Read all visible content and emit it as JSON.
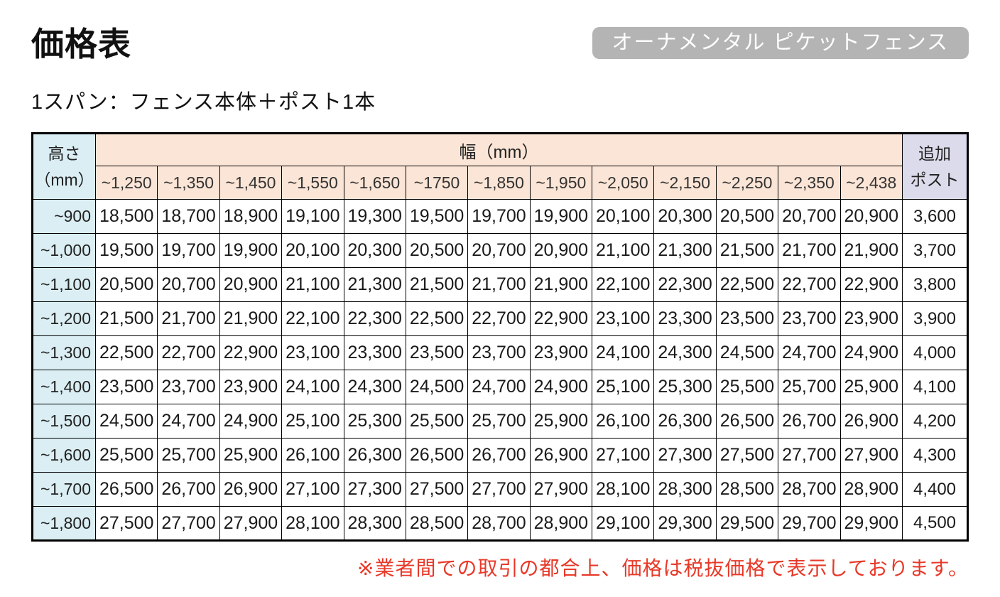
{
  "page": {
    "title": "価格表",
    "badge": "オーナメンタル ピケットフェンス",
    "subtitle": "1スパン：フェンス本体＋ポスト1本",
    "note": "※業者間での取引の都合上、価格は税抜価格で表示しております。"
  },
  "colors": {
    "header_peach": "#fbe5d6",
    "height_blue": "#daeef3",
    "post_lavender": "#dcdbeb",
    "badge_gray": "#b4b4b4",
    "note_red": "#e83828"
  },
  "table": {
    "corner_label_line1": "高さ",
    "corner_label_line2": "（mm）",
    "width_group_label": "幅（mm）",
    "extra_post_label_line1": "追加",
    "extra_post_label_line2": "ポスト",
    "width_headers": [
      "~1,250",
      "~1,350",
      "~1,450",
      "~1,550",
      "~1,650",
      "~1750",
      "~1,850",
      "~1,950",
      "~2,050",
      "~2,150",
      "~2,250",
      "~2,350",
      "~2,438"
    ],
    "rows": [
      {
        "height": "~900",
        "prices": [
          "18,500",
          "18,700",
          "18,900",
          "19,100",
          "19,300",
          "19,500",
          "19,700",
          "19,900",
          "20,100",
          "20,300",
          "20,500",
          "20,700",
          "20,900"
        ],
        "extra_post": "3,600"
      },
      {
        "height": "~1,000",
        "prices": [
          "19,500",
          "19,700",
          "19,900",
          "20,100",
          "20,300",
          "20,500",
          "20,700",
          "20,900",
          "21,100",
          "21,300",
          "21,500",
          "21,700",
          "21,900"
        ],
        "extra_post": "3,700"
      },
      {
        "height": "~1,100",
        "prices": [
          "20,500",
          "20,700",
          "20,900",
          "21,100",
          "21,300",
          "21,500",
          "21,700",
          "21,900",
          "22,100",
          "22,300",
          "22,500",
          "22,700",
          "22,900"
        ],
        "extra_post": "3,800"
      },
      {
        "height": "~1,200",
        "prices": [
          "21,500",
          "21,700",
          "21,900",
          "22,100",
          "22,300",
          "22,500",
          "22,700",
          "22,900",
          "23,100",
          "23,300",
          "23,500",
          "23,700",
          "23,900"
        ],
        "extra_post": "3,900"
      },
      {
        "height": "~1,300",
        "prices": [
          "22,500",
          "22,700",
          "22,900",
          "23,100",
          "23,300",
          "23,500",
          "23,700",
          "23,900",
          "24,100",
          "24,300",
          "24,500",
          "24,700",
          "24,900"
        ],
        "extra_post": "4,000"
      },
      {
        "height": "~1,400",
        "prices": [
          "23,500",
          "23,700",
          "23,900",
          "24,100",
          "24,300",
          "24,500",
          "24,700",
          "24,900",
          "25,100",
          "25,300",
          "25,500",
          "25,700",
          "25,900"
        ],
        "extra_post": "4,100"
      },
      {
        "height": "~1,500",
        "prices": [
          "24,500",
          "24,700",
          "24,900",
          "25,100",
          "25,300",
          "25,500",
          "25,700",
          "25,900",
          "26,100",
          "26,300",
          "26,500",
          "26,700",
          "26,900"
        ],
        "extra_post": "4,200"
      },
      {
        "height": "~1,600",
        "prices": [
          "25,500",
          "25,700",
          "25,900",
          "26,100",
          "26,300",
          "26,500",
          "26,700",
          "26,900",
          "27,100",
          "27,300",
          "27,500",
          "27,700",
          "27,900"
        ],
        "extra_post": "4,300"
      },
      {
        "height": "~1,700",
        "prices": [
          "26,500",
          "26,700",
          "26,900",
          "27,100",
          "27,300",
          "27,500",
          "27,700",
          "27,900",
          "28,100",
          "28,300",
          "28,500",
          "28,700",
          "28,900"
        ],
        "extra_post": "4,400"
      },
      {
        "height": "~1,800",
        "prices": [
          "27,500",
          "27,700",
          "27,900",
          "28,100",
          "28,300",
          "28,500",
          "28,700",
          "28,900",
          "29,100",
          "29,300",
          "29,500",
          "29,700",
          "29,900"
        ],
        "extra_post": "4,500"
      }
    ]
  }
}
